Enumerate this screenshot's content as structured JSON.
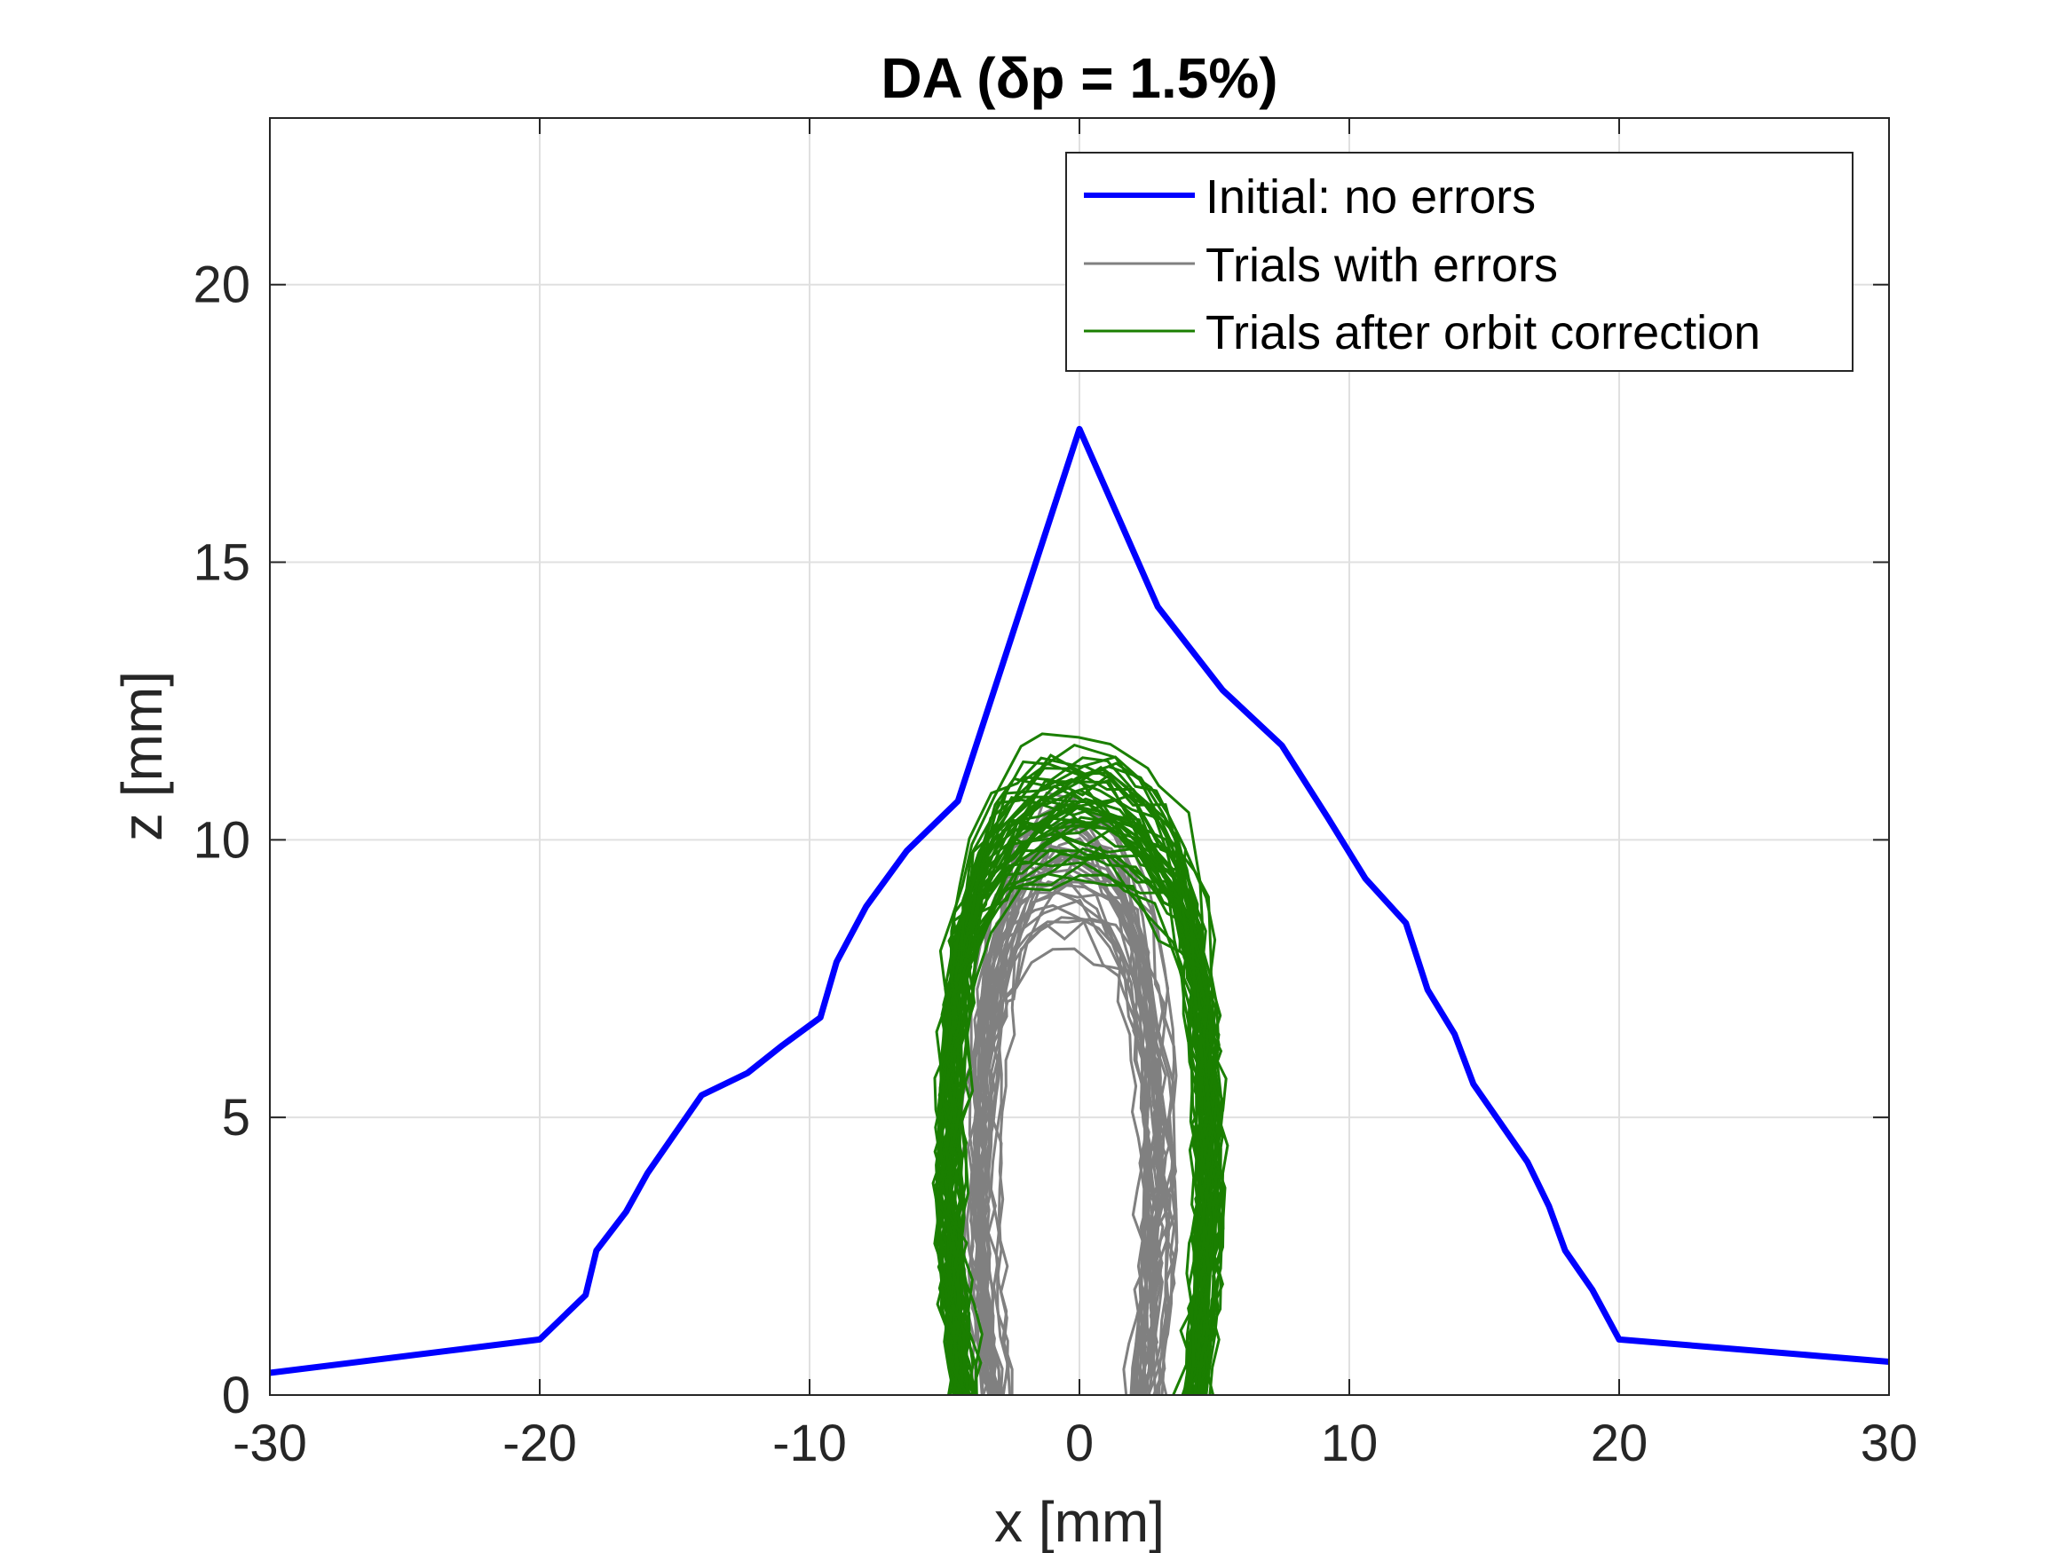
{
  "chart_data": {
    "type": "line",
    "title": "DA (δp = 1.5%)",
    "xlabel": "x [mm]",
    "ylabel": "z [mm]",
    "xlim": [
      -30,
      30
    ],
    "ylim": [
      0,
      23
    ],
    "xticks": [
      -30,
      -20,
      -10,
      0,
      10,
      20,
      30
    ],
    "yticks": [
      0,
      5,
      10,
      15,
      20
    ],
    "grid": true,
    "legend_position": "top-right",
    "colors": {
      "initial": "#0000ff",
      "errors": "#808080",
      "corrected": "#1a7f00"
    },
    "series": [
      {
        "name": "Initial: no errors",
        "color": "#0000ff",
        "x": [
          -30,
          -20,
          -18.3,
          -17.9,
          -16.8,
          -16,
          -15,
          -14,
          -12.3,
          -11,
          -9.6,
          -9,
          -7.9,
          -6.4,
          -4.5,
          0,
          2.9,
          5.3,
          7.5,
          9.2,
          10.6,
          12.1,
          12.9,
          13.9,
          14.6,
          15.6,
          16.6,
          17.4,
          18,
          19,
          20,
          30
        ],
        "y": [
          0.4,
          1,
          1.8,
          2.6,
          3.3,
          4,
          4.7,
          5.4,
          5.8,
          6.3,
          6.8,
          7.8,
          8.8,
          9.8,
          10.7,
          17.4,
          14.2,
          12.7,
          11.7,
          10.4,
          9.3,
          8.5,
          7.3,
          6.5,
          5.6,
          4.9,
          4.2,
          3.4,
          2.6,
          1.9,
          1,
          0.6
        ]
      },
      {
        "name": "Trials with errors",
        "color": "#808080",
        "x": [],
        "y": []
      },
      {
        "name": "Trials after orbit correction",
        "color": "#1a7f00",
        "x": [],
        "y": []
      }
    ]
  },
  "legend": {
    "items": [
      {
        "label": "Initial: no errors",
        "color": "#0000ff",
        "width": 6
      },
      {
        "label": "Trials with errors",
        "color": "#808080",
        "width": 3
      },
      {
        "label": "Trials after orbit correction",
        "color": "#1a7f00",
        "width": 3
      }
    ]
  }
}
